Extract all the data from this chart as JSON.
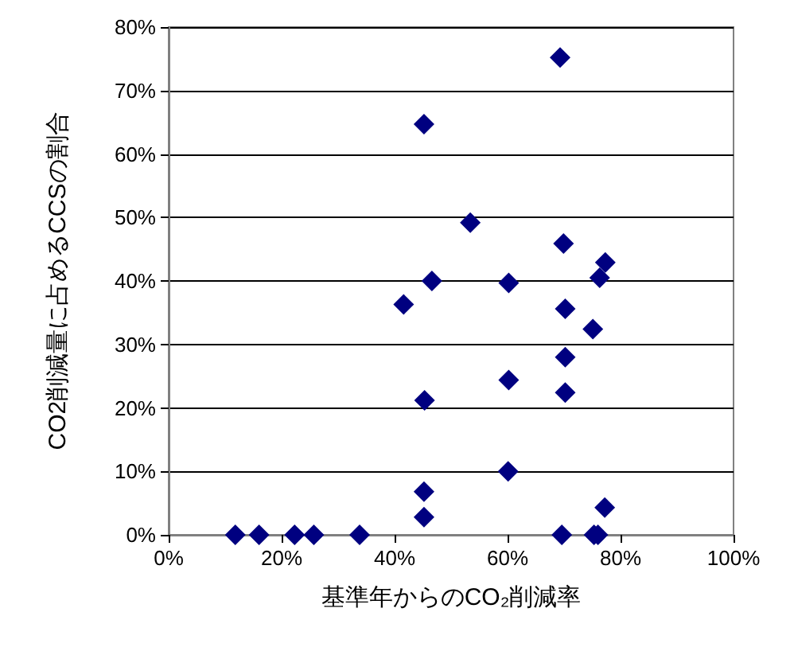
{
  "chart_data": {
    "type": "scatter",
    "xlabel": "基準年からのCO₂削減率",
    "ylabel": "CO2削減量に占めるCCSの割合",
    "x": [
      69.3,
      45.2,
      53.4,
      69.9,
      77.3,
      76.3,
      46.6,
      60.2,
      41.6,
      70.2,
      75.1,
      70.2,
      60.2,
      70.2,
      45.3,
      60.1,
      45.2,
      45.2,
      77.2,
      11.8,
      16.0,
      22.3,
      25.7,
      33.8,
      69.6,
      75.3,
      76.0
    ],
    "values": [
      75.2,
      64.7,
      49.2,
      45.9,
      42.9,
      40.5,
      40.0,
      39.7,
      36.3,
      35.6,
      32.4,
      28.0,
      24.4,
      22.4,
      21.2,
      10,
      6.8,
      2.8,
      4.3,
      0,
      0,
      0,
      0,
      0,
      0,
      0,
      0
    ],
    "color": "#000080",
    "marker": "diamond",
    "grid": "y",
    "xlim": [
      0,
      100
    ],
    "xticks": [
      {
        "value": 0,
        "label": "0%"
      },
      {
        "value": 20,
        "label": "20%"
      },
      {
        "value": 40,
        "label": "40%"
      },
      {
        "value": 60,
        "label": "60%"
      },
      {
        "value": 80,
        "label": "80%"
      },
      {
        "value": 100,
        "label": "100%"
      }
    ],
    "ylim": [
      0,
      80
    ],
    "yticks": [
      {
        "value": 0,
        "label": "0%"
      },
      {
        "value": 10,
        "label": "10%"
      },
      {
        "value": 20,
        "label": "20%"
      },
      {
        "value": 30,
        "label": "30%"
      },
      {
        "value": 40,
        "label": "40%"
      },
      {
        "value": 50,
        "label": "50%"
      },
      {
        "value": 60,
        "label": "60%"
      },
      {
        "value": 70,
        "label": "70%"
      },
      {
        "value": 80,
        "label": "80%"
      }
    ]
  }
}
